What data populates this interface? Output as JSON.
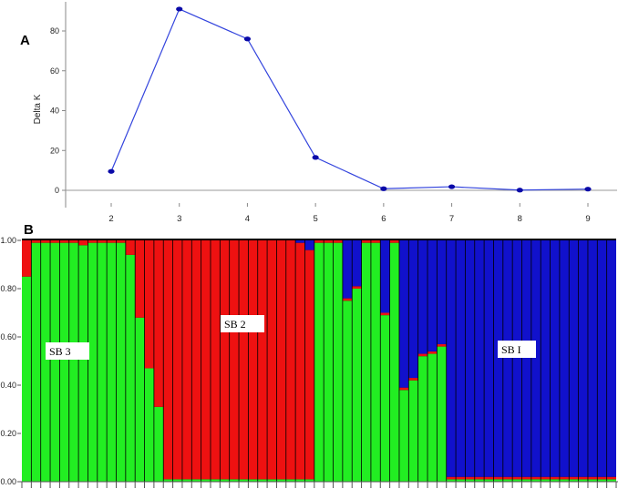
{
  "colors": {
    "line": "#3344dd",
    "point": "#0a0aa8",
    "green": "#22ee22",
    "red": "#ee1111",
    "blue": "#1111cc",
    "axis": "#888888"
  },
  "chart_data": [
    {
      "type": "line",
      "panel_label": "A",
      "title": "",
      "xlabel": "",
      "ylabel": "Delta K",
      "x": [
        2,
        3,
        4,
        5,
        6,
        7,
        8,
        9
      ],
      "series": [
        {
          "values": [
            9.5,
            91,
            76,
            16.5,
            0.8,
            1.8,
            0.1,
            0.6
          ]
        }
      ],
      "xlim": [
        1,
        10
      ],
      "ylim": [
        -10,
        95
      ],
      "xticks": [
        "2",
        "3",
        "4",
        "5",
        "6",
        "7",
        "8",
        "9"
      ],
      "yticks": [
        "0",
        "20",
        "40",
        "60",
        "80"
      ],
      "grid": false
    },
    {
      "type": "bar",
      "stacked": true,
      "panel_label": "B",
      "title": "",
      "xlabel": "",
      "ylabel": "",
      "ylim": [
        0,
        1
      ],
      "yticks": [
        "0.00",
        "0.20",
        "0.40",
        "0.60",
        "0.80",
        "1.00"
      ],
      "annotations": [
        "SB 3",
        "SB 2",
        "SB I"
      ],
      "series": [
        {
          "color": "green",
          "values": [
            0.85,
            0.99,
            0.99,
            0.99,
            0.99,
            0.99,
            0.98,
            0.99,
            0.99,
            0.99,
            0.99,
            0.94,
            0.68,
            0.47,
            0.31,
            0.01,
            0.01,
            0.01,
            0.01,
            0.01,
            0.01,
            0.01,
            0.01,
            0.01,
            0.01,
            0.01,
            0.01,
            0.01,
            0.01,
            0.01,
            0.01,
            0.99,
            0.99,
            0.99,
            0.75,
            0.8,
            0.99,
            0.99,
            0.69,
            0.99,
            0.38,
            0.42,
            0.52,
            0.53,
            0.56,
            0.01,
            0.01,
            0.01,
            0.01,
            0.01,
            0.01,
            0.01,
            0.01,
            0.01,
            0.01,
            0.01,
            0.01,
            0.01,
            0.01,
            0.01,
            0.01,
            0.01,
            0.01
          ]
        },
        {
          "color": "red",
          "values": [
            0.15,
            0.01,
            0.01,
            0.01,
            0.01,
            0.01,
            0.02,
            0.01,
            0.01,
            0.01,
            0.01,
            0.06,
            0.32,
            0.53,
            0.69,
            0.99,
            0.99,
            0.99,
            0.99,
            0.99,
            0.99,
            0.99,
            0.99,
            0.99,
            0.99,
            0.99,
            0.99,
            0.99,
            0.99,
            0.98,
            0.95,
            0.01,
            0.01,
            0.01,
            0.01,
            0.01,
            0.01,
            0.01,
            0.01,
            0.01,
            0.01,
            0.01,
            0.01,
            0.01,
            0.01,
            0.01,
            0.01,
            0.01,
            0.01,
            0.01,
            0.01,
            0.01,
            0.01,
            0.01,
            0.01,
            0.01,
            0.01,
            0.01,
            0.01,
            0.01,
            0.01,
            0.01,
            0.01
          ]
        },
        {
          "color": "blue",
          "values": [
            0.0,
            0.0,
            0.0,
            0.0,
            0.0,
            0.0,
            0.0,
            0.0,
            0.0,
            0.0,
            0.0,
            0.0,
            0.0,
            0.0,
            0.0,
            0.0,
            0.0,
            0.0,
            0.0,
            0.0,
            0.0,
            0.0,
            0.0,
            0.0,
            0.0,
            0.0,
            0.0,
            0.0,
            0.0,
            0.01,
            0.04,
            0.0,
            0.0,
            0.0,
            0.24,
            0.19,
            0.0,
            0.0,
            0.3,
            0.0,
            0.61,
            0.57,
            0.47,
            0.46,
            0.43,
            0.98,
            0.98,
            0.98,
            0.98,
            0.98,
            0.98,
            0.98,
            0.98,
            0.98,
            0.98,
            0.98,
            0.98,
            0.98,
            0.98,
            0.98,
            0.98,
            0.98,
            0.98
          ]
        }
      ]
    }
  ]
}
